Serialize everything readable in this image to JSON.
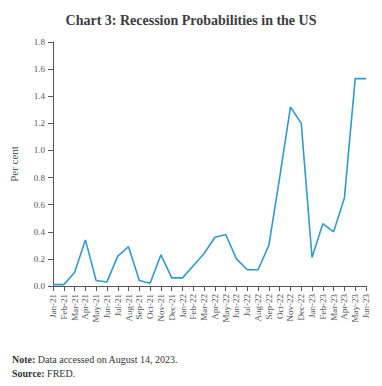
{
  "chart_data": {
    "type": "line",
    "title": "Chart 3: Recession Probabilities in the US",
    "ylabel": "Per cent",
    "categories": [
      "Jan-21",
      "Feb-21",
      "Mar-21",
      "Apr-21",
      "May-21",
      "Jun-21",
      "Jul-21",
      "Aug-21",
      "Sep-21",
      "Oct-21",
      "Nov-21",
      "Dec-21",
      "Jan-22",
      "Feb-22",
      "Mar-22",
      "Apr-22",
      "May-22",
      "Jun-22",
      "Jul-22",
      "Aug-22",
      "Sep-22",
      "Oct-22",
      "Nov-22",
      "Dec-22",
      "Jan-23",
      "Feb-23",
      "Mar-23",
      "Apr-23",
      "May-23",
      "Jun-23"
    ],
    "values": [
      0.01,
      0.01,
      0.1,
      0.34,
      0.04,
      0.03,
      0.22,
      0.29,
      0.04,
      0.02,
      0.23,
      0.06,
      0.06,
      0.15,
      0.24,
      0.36,
      0.38,
      0.2,
      0.12,
      0.12,
      0.3,
      0.8,
      1.32,
      1.2,
      0.21,
      0.46,
      0.4,
      0.65,
      1.53,
      1.53
    ],
    "color": "#3399CC",
    "ylim": [
      0,
      1.8
    ],
    "yticks": [
      {
        "value": 0,
        "label": "0.0"
      },
      0.2,
      0.4,
      0.6,
      0.8,
      {
        "value": 1,
        "label": "1.0"
      },
      1.2,
      1.4,
      1.6,
      1.8
    ],
    "grid": false,
    "annotations": [
      {
        "label": "Note:",
        "text": "Data accessed on August 14, 2023."
      },
      {
        "label": "Source:",
        "text": "FRED."
      }
    ]
  }
}
